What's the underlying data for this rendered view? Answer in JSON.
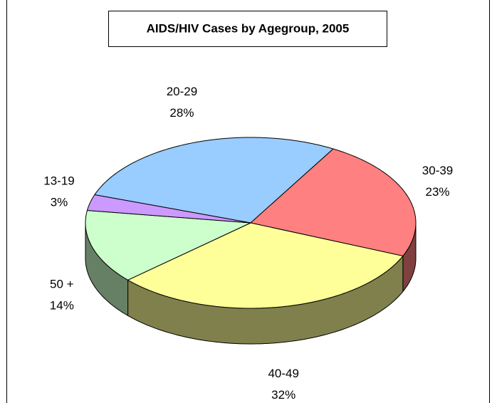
{
  "chart_data": {
    "type": "pie",
    "title": "AIDS/HIV Cases by Agegroup, 2005",
    "categories": [
      "20-29",
      "30-39",
      "40-49",
      "50 +",
      "13-19"
    ],
    "values": [
      28,
      23,
      32,
      14,
      3
    ],
    "value_labels": [
      "28%",
      "23%",
      "32%",
      "14%",
      "3%"
    ],
    "colors": [
      "#99ccff",
      "#ff8080",
      "#ffff99",
      "#ccffcc",
      "#cc99ff"
    ]
  }
}
